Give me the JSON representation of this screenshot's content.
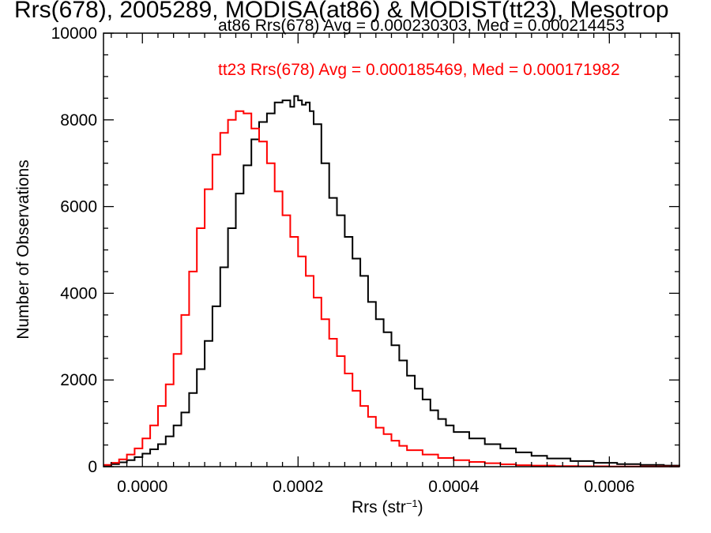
{
  "chart_data": {
    "type": "line",
    "title": "Rrs(678), 2005289, MODISA(at86) & MODIST(tt23), Mesotrop",
    "xlabel": {
      "base": "Rrs (str",
      "sup": "−1",
      "tail": ")"
    },
    "ylabel": "Number of Observations",
    "xlim": [
      -5e-05,
      0.00069
    ],
    "ylim": [
      0,
      10000
    ],
    "xticks": [
      {
        "value": 0.0,
        "label": "0.0000"
      },
      {
        "value": 0.0002,
        "label": "0.0002"
      },
      {
        "value": 0.0004,
        "label": "0.0004"
      },
      {
        "value": 0.0006,
        "label": "0.0006"
      }
    ],
    "yticks": [
      {
        "value": 0,
        "label": "0"
      },
      {
        "value": 2000,
        "label": "2000"
      },
      {
        "value": 4000,
        "label": "4000"
      },
      {
        "value": 6000,
        "label": "6000"
      },
      {
        "value": 8000,
        "label": "8000"
      },
      {
        "value": 10000,
        "label": "10000"
      }
    ],
    "legend_placement": "top-right",
    "grid": false,
    "series": [
      {
        "name": "at86",
        "legend": "at86 Rrs(678) Avg = 0.000230303, Med = 0.000214453",
        "color": "#000000",
        "step": true,
        "x": [
          -5e-05,
          -4e-05,
          -3e-05,
          -2e-05,
          -1e-05,
          0.0,
          1e-05,
          2e-05,
          3e-05,
          4e-05,
          5e-05,
          6e-05,
          7e-05,
          8e-05,
          9e-05,
          0.0001,
          0.00011,
          0.00012,
          0.00013,
          0.00014,
          0.00015,
          0.00016,
          0.00017,
          0.00018,
          0.00019,
          0.000195,
          0.0002,
          0.000205,
          0.00021,
          0.000215,
          0.00022,
          0.00023,
          0.00024,
          0.00025,
          0.00026,
          0.00027,
          0.00028,
          0.00029,
          0.0003,
          0.00031,
          0.00032,
          0.00033,
          0.00034,
          0.00035,
          0.00036,
          0.00037,
          0.00038,
          0.00039,
          0.0004,
          0.00042,
          0.00044,
          0.00046,
          0.00048,
          0.0005,
          0.00052,
          0.00055,
          0.00058,
          0.00061,
          0.00064,
          0.00067,
          0.00069
        ],
        "y": [
          30,
          60,
          100,
          150,
          220,
          300,
          400,
          520,
          700,
          950,
          1250,
          1700,
          2250,
          2900,
          3700,
          4600,
          5500,
          6300,
          6950,
          7550,
          7950,
          8150,
          8400,
          8450,
          8300,
          8550,
          8450,
          8350,
          8400,
          8200,
          7900,
          7000,
          6200,
          5800,
          5300,
          4800,
          4400,
          3800,
          3400,
          3100,
          2800,
          2450,
          2100,
          1800,
          1550,
          1300,
          1100,
          950,
          800,
          650,
          520,
          420,
          330,
          250,
          190,
          130,
          90,
          60,
          40,
          25,
          10
        ]
      },
      {
        "name": "tt23",
        "legend": "tt23 Rrs(678) Avg = 0.000185469, Med = 0.000171982",
        "color": "#ff0000",
        "step": true,
        "x": [
          -5e-05,
          -4e-05,
          -3e-05,
          -2e-05,
          -1e-05,
          0.0,
          1e-05,
          2e-05,
          3e-05,
          4e-05,
          5e-05,
          6e-05,
          7e-05,
          8e-05,
          9e-05,
          0.0001,
          0.00011,
          0.00012,
          0.00013,
          0.00014,
          0.00015,
          0.00016,
          0.00017,
          0.00018,
          0.00019,
          0.0002,
          0.00021,
          0.00022,
          0.00023,
          0.00024,
          0.00025,
          0.00026,
          0.00027,
          0.00028,
          0.00029,
          0.0003,
          0.00031,
          0.00032,
          0.00033,
          0.00034,
          0.00036,
          0.00038,
          0.0004,
          0.00042,
          0.00044,
          0.00046,
          0.00048,
          0.0005,
          0.00053,
          0.00056,
          0.0006,
          0.00064,
          0.00069
        ],
        "y": [
          40,
          90,
          170,
          280,
          420,
          650,
          950,
          1400,
          1900,
          2600,
          3500,
          4500,
          5500,
          6400,
          7200,
          7700,
          8000,
          8200,
          8150,
          7800,
          7500,
          7000,
          6350,
          5800,
          5300,
          4850,
          4400,
          3900,
          3400,
          2950,
          2550,
          2150,
          1750,
          1400,
          1150,
          900,
          750,
          600,
          480,
          380,
          280,
          200,
          150,
          110,
          80,
          55,
          35,
          25,
          15,
          10,
          5,
          3,
          2
        ]
      }
    ]
  }
}
